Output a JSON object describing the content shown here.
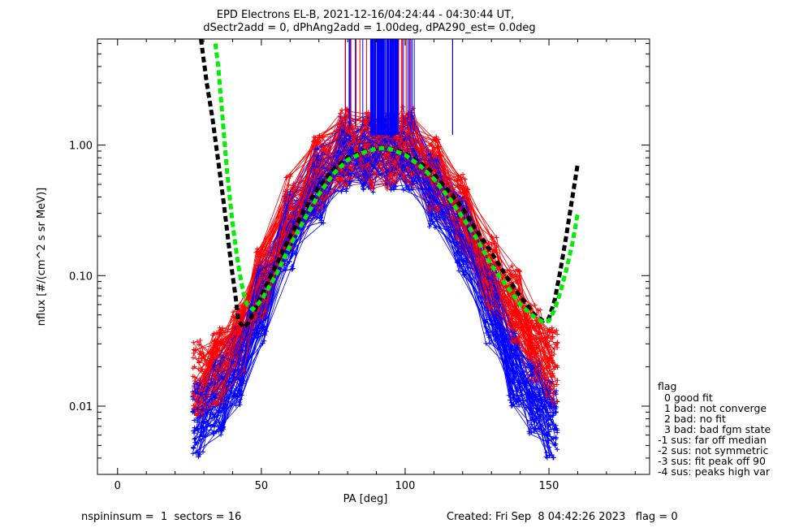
{
  "header": {
    "line1": "EPD Electrons EL-B, 2021-12-16/04:24:44 - 04:30:44 UT,",
    "line2": "dSectr2add = 0, dPhAng2add = 1.00deg, dPA290_est=    0.0deg"
  },
  "footer": {
    "left": "nspininsum =  1  sectors = 16",
    "right": "Created: Fri Sep  8 04:42:26 2023   flag = 0"
  },
  "legend": {
    "title": "flag",
    "entries": [
      "  0 good fit",
      "  1 bad: not converge",
      "  2 bad: no fit",
      "  3 bad: bad fgm state",
      "-1 sus: far off median",
      "-2 sus: not symmetric",
      "-3 sus: fit peak off 90",
      "-4 sus: peaks high var"
    ]
  },
  "colors": {
    "series_red": "#ff0000",
    "series_blue": "#0000ff",
    "fit_black": "#000000",
    "fit_green": "#00ee00"
  },
  "chart_data": {
    "type": "line",
    "xlabel": "PA [deg]",
    "ylabel": "nflux [#/(cm^2 s sr MeV)]",
    "xlim": [
      -7,
      185
    ],
    "ylim": [
      0.003,
      6.5
    ],
    "yscale": "log",
    "grid": false,
    "x_ticks": [
      {
        "value": 0,
        "label": "0"
      },
      {
        "value": 50,
        "label": "50"
      },
      {
        "value": 100,
        "label": "100"
      },
      {
        "value": 150,
        "label": "150"
      }
    ],
    "x_minor_step": 10,
    "y_ticks": [
      {
        "value": 0.01,
        "label": "0.01"
      },
      {
        "value": 0.1,
        "label": "0.10"
      },
      {
        "value": 1.0,
        "label": "1.00"
      }
    ],
    "series": [
      {
        "color": "red",
        "x": [
          28,
          35,
          42,
          50,
          60,
          70,
          79,
          87,
          95,
          101,
          110,
          120,
          130,
          138,
          145,
          151
        ],
        "y": [
          0.016,
          0.02,
          0.03,
          0.09,
          0.3,
          0.6,
          0.95,
          0.92,
          0.9,
          1.0,
          0.6,
          0.3,
          0.1,
          0.06,
          0.03,
          0.02
        ]
      },
      {
        "color": "blue",
        "x": [
          28,
          35,
          42,
          50,
          60,
          70,
          79,
          87,
          95,
          101,
          110,
          120,
          130,
          138,
          145,
          151
        ],
        "y": [
          0.008,
          0.012,
          0.02,
          0.06,
          0.22,
          0.5,
          0.85,
          0.85,
          0.9,
          0.9,
          0.45,
          0.2,
          0.06,
          0.02,
          0.012,
          0.008
        ]
      },
      {
        "color": "fit-black",
        "x": [
          29,
          31,
          33,
          35,
          37,
          39,
          40,
          41,
          42,
          44,
          46,
          50,
          55,
          60,
          65,
          70,
          75,
          80,
          85,
          90,
          93,
          95,
          100,
          105,
          110,
          115,
          120,
          125,
          130,
          135,
          140,
          145,
          148,
          150,
          152,
          154,
          156,
          158,
          160
        ],
        "y": [
          6.5,
          3.0,
          1.6,
          0.75,
          0.35,
          0.15,
          0.1,
          0.07,
          0.045,
          0.04,
          0.045,
          0.07,
          0.12,
          0.2,
          0.32,
          0.48,
          0.65,
          0.8,
          0.88,
          0.94,
          0.95,
          0.94,
          0.86,
          0.74,
          0.6,
          0.45,
          0.33,
          0.22,
          0.15,
          0.1,
          0.07,
          0.05,
          0.045,
          0.047,
          0.065,
          0.11,
          0.2,
          0.38,
          0.72
        ]
      },
      {
        "color": "fit-green",
        "x": [
          34,
          35,
          36,
          37,
          38,
          39,
          40,
          41,
          42,
          43,
          44,
          45,
          47,
          50,
          55,
          60,
          65,
          70,
          75,
          80,
          85,
          90,
          93,
          95,
          100,
          105,
          110,
          115,
          120,
          125,
          130,
          135,
          140,
          145,
          148,
          150,
          152,
          154,
          156,
          158,
          160
        ],
        "y": [
          6.0,
          4.0,
          2.2,
          1.2,
          0.65,
          0.4,
          0.25,
          0.17,
          0.12,
          0.09,
          0.07,
          0.06,
          0.055,
          0.065,
          0.1,
          0.17,
          0.27,
          0.42,
          0.6,
          0.77,
          0.87,
          0.94,
          0.95,
          0.93,
          0.84,
          0.7,
          0.55,
          0.4,
          0.28,
          0.19,
          0.12,
          0.085,
          0.06,
          0.048,
          0.044,
          0.045,
          0.055,
          0.075,
          0.11,
          0.17,
          0.3
        ]
      }
    ]
  }
}
